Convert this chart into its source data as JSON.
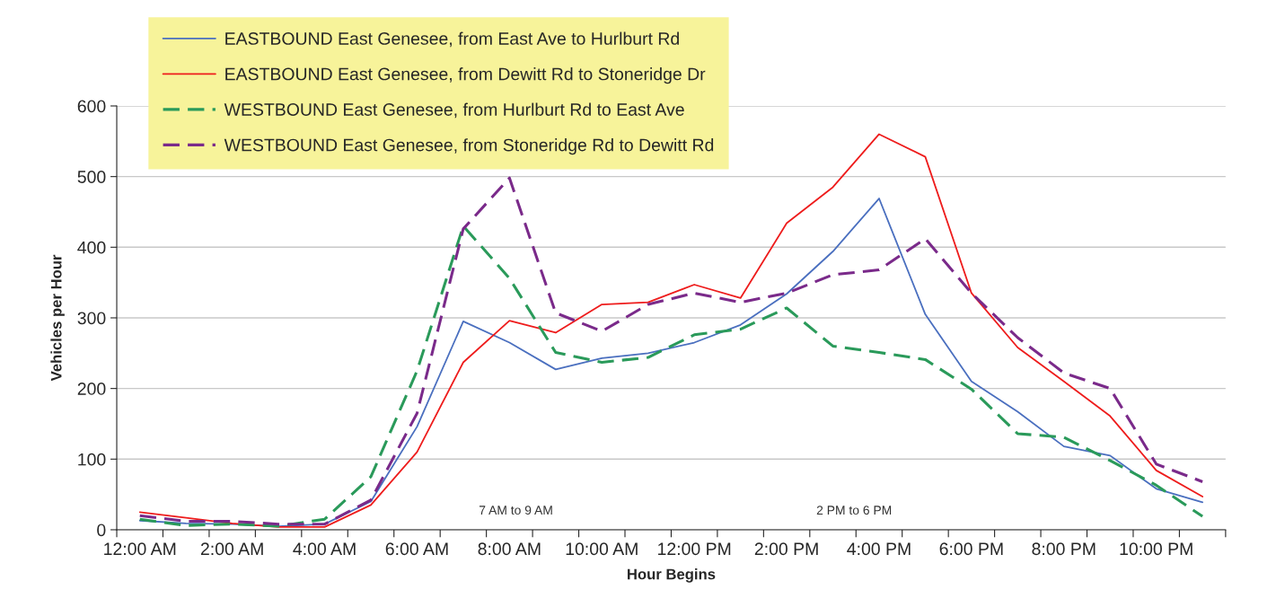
{
  "chart_data": {
    "type": "line",
    "xlabel": "Hour Begins",
    "ylabel": "Vehicles per Hour",
    "categories": [
      "12:00 AM",
      null,
      "2:00 AM",
      null,
      "4:00 AM",
      null,
      "6:00 AM",
      null,
      "8:00 AM",
      null,
      "10:00 AM",
      null,
      "12:00 PM",
      null,
      "2:00 PM",
      null,
      "4:00 PM",
      null,
      "6:00 PM",
      null,
      "8:00 PM",
      null,
      "10:00 PM",
      null
    ],
    "series": [
      {
        "name": "EASTBOUND East Genesee, from East Ave to Hurlburt Rd",
        "color": "#4a6fbf",
        "line_style": "solid",
        "values": [
          13,
          9,
          8,
          5,
          8,
          40,
          146,
          295,
          265,
          227,
          243,
          250,
          265,
          290,
          334,
          394,
          469,
          305,
          210,
          167,
          118,
          105,
          58,
          39
        ]
      },
      {
        "name": "EASTBOUND East Genesee, from Dewitt Rd to Stoneridge Dr",
        "color": "#ee1c1c",
        "line_style": "solid",
        "values": [
          25,
          17,
          9,
          4,
          4,
          35,
          110,
          237,
          296,
          279,
          319,
          322,
          347,
          328,
          434,
          485,
          560,
          528,
          335,
          258,
          210,
          161,
          84,
          47
        ]
      },
      {
        "name": "WESTBOUND East Genesee, from Hurlburt Rd to East Ave",
        "color": "#2a9a5a",
        "line_style": "dashed",
        "values": [
          15,
          6,
          8,
          5,
          15,
          75,
          225,
          430,
          356,
          251,
          237,
          244,
          276,
          284,
          314,
          260,
          251,
          241,
          199,
          136,
          131,
          98,
          63,
          19
        ]
      },
      {
        "name": "WESTBOUND East Genesee, from Stoneridge Rd to Dewitt Rd",
        "color": "#7a2a8a",
        "line_style": "dashed",
        "values": [
          20,
          12,
          12,
          8,
          8,
          42,
          165,
          426,
          498,
          307,
          281,
          319,
          335,
          322,
          335,
          361,
          368,
          412,
          335,
          272,
          222,
          200,
          93,
          68
        ]
      }
    ],
    "ylim": [
      0,
      600
    ],
    "yticks": [
      0,
      100,
      200,
      300,
      400,
      500,
      600
    ],
    "grid": "y",
    "legend": "top left",
    "annotations": [
      "7 AM to 9 AM",
      "2 PM to 6 PM"
    ]
  }
}
